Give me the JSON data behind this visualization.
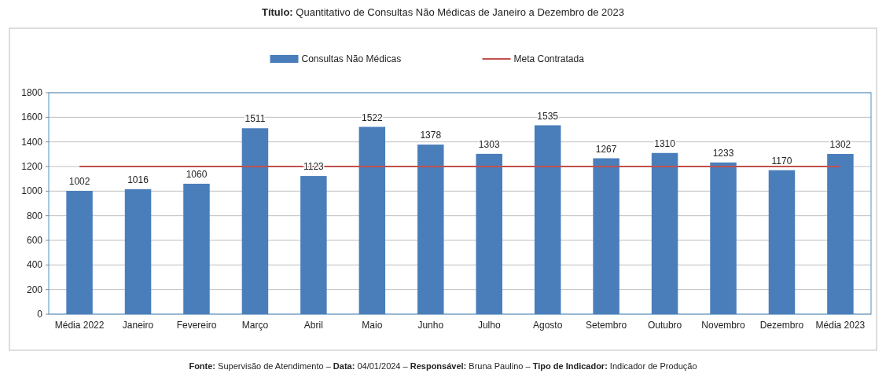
{
  "chart_data": {
    "type": "bar",
    "title": "Título: Quantitativo de Consultas Não Médicas de Janeiro a Dezembro de 2023",
    "categories": [
      "Média 2022",
      "Janeiro",
      "Fevereiro",
      "Março",
      "Abril",
      "Maio",
      "Junho",
      "Julho",
      "Agosto",
      "Setembro",
      "Outubro",
      "Novembro",
      "Dezembro",
      "Média 2023"
    ],
    "series": [
      {
        "name": "Consultas Não Médicas",
        "color": "#4a7ebb",
        "values": [
          1002,
          1016,
          1060,
          1511,
          1123,
          1522,
          1378,
          1303,
          1535,
          1267,
          1310,
          1233,
          1170,
          1302
        ],
        "value_labels": [
          "1002",
          "1016",
          "1060",
          "1511",
          "1123",
          "1522",
          "1378",
          "1303",
          "1535",
          "1267",
          "1310",
          "1233",
          "1170",
          "1302"
        ]
      },
      {
        "name": "Meta Contratada",
        "type": "line",
        "color": "#c0504d",
        "values": [
          1200,
          1200,
          1200,
          1200,
          1200,
          1200,
          1200,
          1200,
          1200,
          1200,
          1200,
          1200,
          1200,
          1200
        ]
      }
    ],
    "ylim": [
      0,
      1800
    ],
    "yticks": [
      0,
      200,
      400,
      600,
      800,
      1000,
      1200,
      1400,
      1600,
      1800
    ],
    "grid": "y",
    "legend": "top",
    "annotations": [
      "Fonte: Supervisão de Atendimento – Data: 04/01/2024 – Responsável: Bruna Paulino – Tipo de Indicador: Indicador de Produção"
    ]
  }
}
